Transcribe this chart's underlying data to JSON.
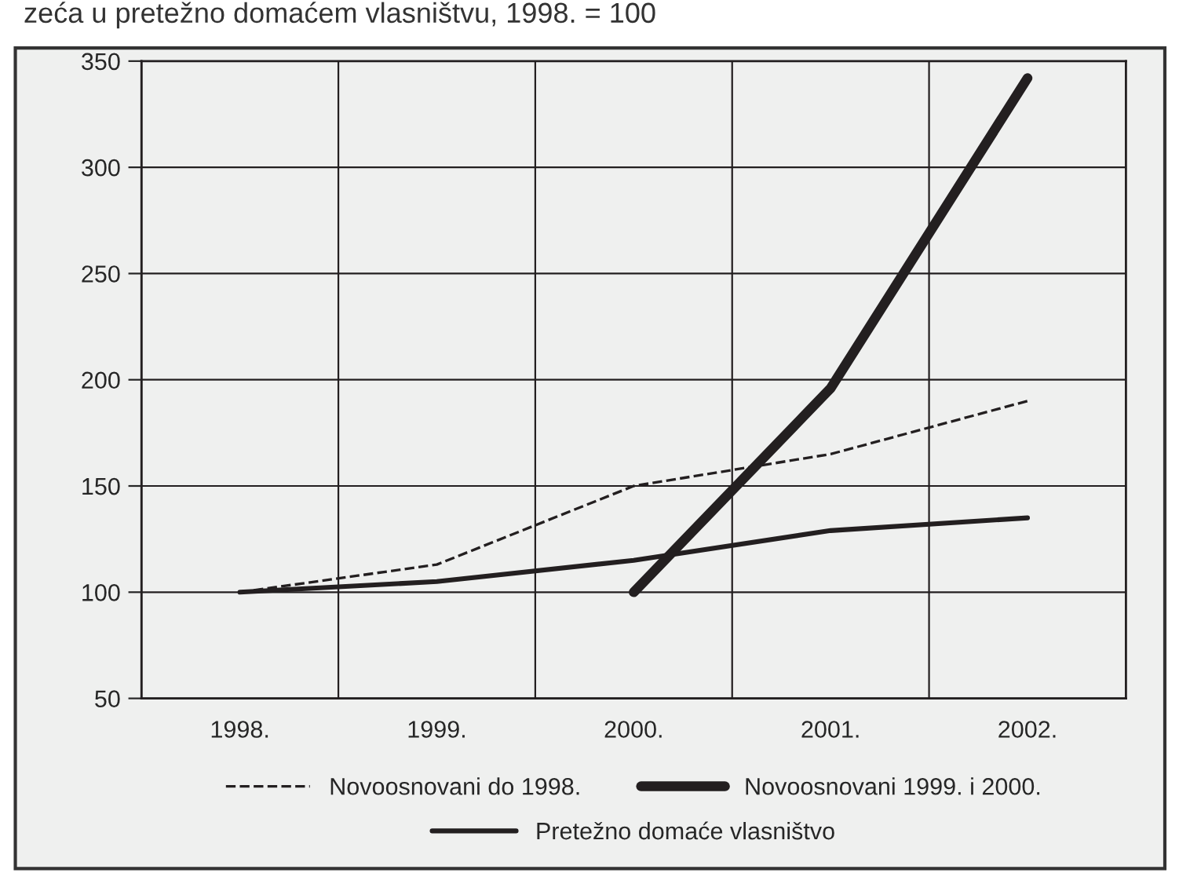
{
  "chart_data": {
    "type": "line",
    "title": "zeća u pretežno domaćem vlasništvu, 1998. = 100",
    "categories": [
      "1998.",
      "1999.",
      "2000.",
      "2001.",
      "2002."
    ],
    "series": [
      {
        "name": "Novoosnovani do 1998.",
        "color": "#231f20",
        "line_style": "dashed",
        "values": [
          100,
          113,
          150,
          165,
          190
        ]
      },
      {
        "name": "Novoosnovani 1999. i 2000.",
        "color": "#231f20",
        "line_style": "solid",
        "values": [
          null,
          null,
          100,
          196,
          342
        ]
      },
      {
        "name": "Pretežno domaće vlasništvo",
        "color": "#231f20",
        "line_style": "solid",
        "values": [
          100,
          105,
          115,
          129,
          135
        ]
      }
    ],
    "ylim": [
      50,
      350
    ],
    "yticks": [
      50,
      100,
      150,
      200,
      250,
      300,
      350
    ],
    "grid": true,
    "legend": "bottom",
    "marker": "none"
  }
}
